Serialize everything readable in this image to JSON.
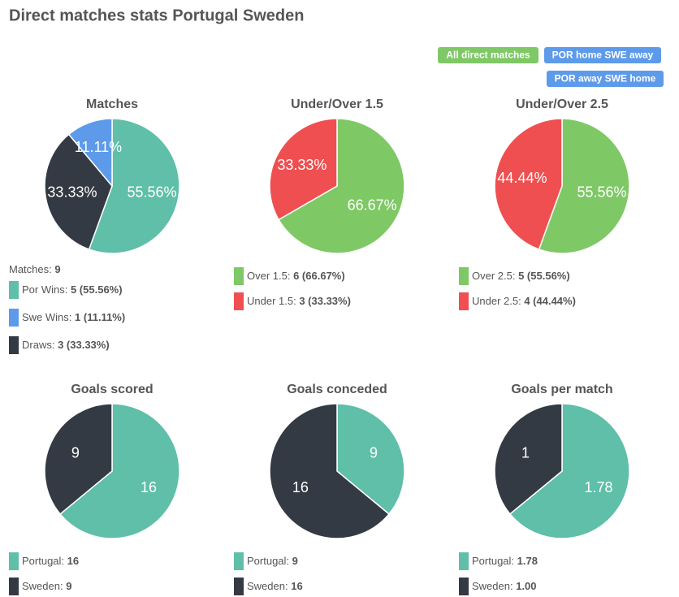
{
  "title": "Direct matches stats Portugal Sweden",
  "buttons": [
    "All direct matches",
    "POR home SWE away",
    "POR away SWE home"
  ],
  "chart_data": [
    {
      "type": "pie",
      "title": "Matches",
      "categories": [
        "Por Wins",
        "Draws",
        "Swe Wins"
      ],
      "values": [
        55.56,
        33.33,
        11.11
      ],
      "value_labels": [
        "55.56%",
        "33.33%",
        "11.11%"
      ],
      "colors": [
        "#5fbfa9",
        "#343a44",
        "#5d9bea"
      ],
      "summary": {
        "label": "Matches:",
        "value": "9"
      },
      "legend": [
        {
          "label": "Por Wins:",
          "value": "5 (55.56%)",
          "color": "#5fbfa9"
        },
        {
          "label": "Swe Wins:",
          "value": "1 (11.11%)",
          "color": "#5d9bea"
        },
        {
          "label": "Draws:",
          "value": "3 (33.33%)",
          "color": "#343a44"
        }
      ]
    },
    {
      "type": "pie",
      "title": "Under/Over 1.5",
      "categories": [
        "Over 1.5",
        "Under 1.5"
      ],
      "values": [
        66.67,
        33.33
      ],
      "value_labels": [
        "66.67%",
        "33.33%"
      ],
      "colors": [
        "#7fc866",
        "#ef4f50"
      ],
      "legend": [
        {
          "label": "Over 1.5:",
          "value": "6 (66.67%)",
          "color": "#7fc866"
        },
        {
          "label": "Under 1.5:",
          "value": "3 (33.33%)",
          "color": "#ef4f50"
        }
      ]
    },
    {
      "type": "pie",
      "title": "Under/Over 2.5",
      "categories": [
        "Over 2.5",
        "Under 2.5"
      ],
      "values": [
        55.56,
        44.44
      ],
      "value_labels": [
        "55.56%",
        "44.44%"
      ],
      "colors": [
        "#7fc866",
        "#ef4f50"
      ],
      "legend": [
        {
          "label": "Over 2.5:",
          "value": "5 (55.56%)",
          "color": "#7fc866"
        },
        {
          "label": "Under 2.5:",
          "value": "4 (44.44%)",
          "color": "#ef4f50"
        }
      ]
    },
    {
      "type": "pie",
      "title": "Goals scored",
      "categories": [
        "Portugal",
        "Sweden"
      ],
      "values": [
        16,
        9
      ],
      "colors": [
        "#5fbfa9",
        "#343a44"
      ],
      "legend": [
        {
          "label": "Portugal:",
          "value": "16",
          "color": "#5fbfa9"
        },
        {
          "label": "Sweden:",
          "value": "9",
          "color": "#343a44"
        }
      ]
    },
    {
      "type": "pie",
      "title": "Goals conceded",
      "categories": [
        "Portugal",
        "Sweden"
      ],
      "values": [
        9,
        16
      ],
      "colors": [
        "#5fbfa9",
        "#343a44"
      ],
      "legend": [
        {
          "label": "Portugal:",
          "value": "9",
          "color": "#5fbfa9"
        },
        {
          "label": "Sweden:",
          "value": "16",
          "color": "#343a44"
        }
      ]
    },
    {
      "type": "pie",
      "title": "Goals per match",
      "categories": [
        "Portugal",
        "Sweden"
      ],
      "values": [
        1.78,
        1
      ],
      "colors": [
        "#5fbfa9",
        "#343a44"
      ],
      "legend": [
        {
          "label": "Portugal:",
          "value": "1.78",
          "color": "#5fbfa9"
        },
        {
          "label": "Sweden:",
          "value": "1.00",
          "color": "#343a44"
        }
      ]
    }
  ]
}
